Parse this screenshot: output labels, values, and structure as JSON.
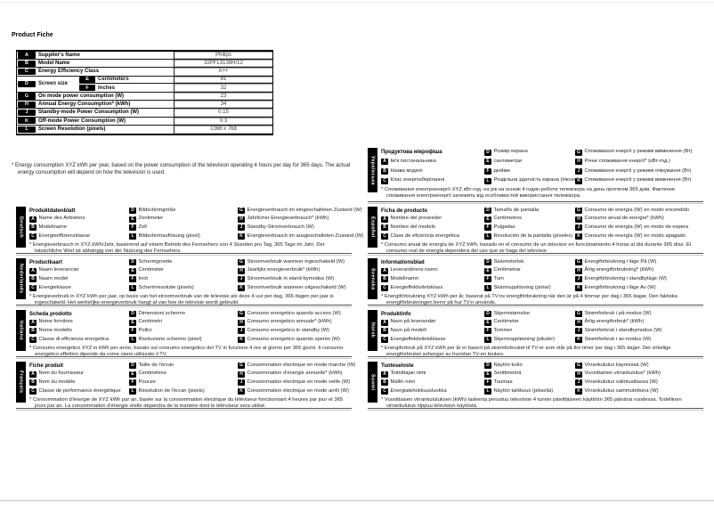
{
  "page": {
    "title": "Product Fiche"
  },
  "colors": {
    "badge_bg": "#000000",
    "badge_text": "#ffffff",
    "rule_dark": "#555555",
    "rule_light": "#c9c9c9"
  },
  "table": {
    "rows": [
      {
        "badge": "A",
        "label": "Supplier's Name",
        "value": "Philips"
      },
      {
        "badge": "B",
        "label": "Model Name",
        "value": "32PFL3138H/12"
      },
      {
        "badge": "C",
        "label": "Energy Efficiency Class",
        "value": "A++"
      },
      {
        "badge": "D",
        "label": "Screen size",
        "sub": [
          {
            "badge": "E",
            "label": "Centimeters",
            "value": "81"
          },
          {
            "badge": "F",
            "label": "Inches",
            "value": "32"
          }
        ]
      },
      {
        "badge": "G",
        "label": "On mode power consumption (W)",
        "value": "23"
      },
      {
        "badge": "H",
        "label": "Annual Energy Consumption* (kWh)",
        "value": "34"
      },
      {
        "badge": "J",
        "label": "Standby-mode Power Consumption (W)",
        "value": "0.15"
      },
      {
        "badge": "K",
        "label": "Off-mode Power Consumption (W)",
        "value": "0.3"
      },
      {
        "badge": "L",
        "label": "Screen Resolution (pixels)",
        "value": "1366 x 768"
      }
    ]
  },
  "footnote_en": "* Energy consumption XYZ kWh per year, based on the power consumption of the television operating 4 hours per day for 365 days. The actual energy consumption will depend on how the television is used.",
  "sections": [
    {
      "language": "Deutsch",
      "column": "left",
      "title": "Produktdatenblatt",
      "items": {
        "A": "Name des Anbieters",
        "B": "Modellname",
        "C": "Energieeffizienzklasse",
        "D": "Bildschirmgröße",
        "E": "Zentimeter",
        "F": "Zoll",
        "L": "Bildschirmauflösung (pixel)",
        "G": "Energieverbrauch im eingeschalteten Zustand (W)",
        "H": "Jährlicher Energieverbrauch* (kWh)",
        "J": "Standby-Stromverbrauch (W)",
        "K": "Energieverbrauch im ausgeschalteten Zustand (W)"
      },
      "note": "* Energieverbrauch in XYZ kWh/Jahr, basierend auf einem Betrieb des Fernsehers von 4 Stunden pro Tag, 365 Tage im Jahr. Der tatsächliche Wert ist abhängig von der Nutzung des Fernsehers."
    },
    {
      "language": "Nederlands",
      "column": "left",
      "title": "Productkaart",
      "items": {
        "A": "Naam leverancier",
        "B": "Naam model",
        "C": "Energieklasse",
        "D": "Schermgrootte",
        "E": "Centimeter",
        "F": "Inch",
        "L": "Schermresolutie (pixels)",
        "G": "Stroomverbruik wanneer ingeschakeld (W)",
        "H": "Jaarlijks energieverbruik* (kWh)",
        "J": "Stroomverbruik in stand-bymodus (W)",
        "K": "Stroomverbruik wanneer uitgeschakeld (W)"
      },
      "note": "* Energieverbruik in XYZ kWh per jaar, op basis van het stroomverbruik van de televisie als deze 4 uur per dag, 365 dagen per jaar is ingeschakeld. Het werkelijke energieverbruik hangt af van hoe de televisie wordt gebruikt."
    },
    {
      "language": "Italiano",
      "column": "left",
      "title": "Scheda prodotto",
      "items": {
        "A": "Nome fornitore",
        "B": "Nome modello",
        "C": "Classe di efficienza energetica",
        "D": "Dimensioni schermo",
        "E": "Centimetri",
        "F": "Pollici",
        "L": "Risoluzione schermo (pixel)",
        "G": "Consumo energetico quando acceso (W)",
        "H": "Consumo energetico annuale* (kWh)",
        "J": "Consumo energetico in standby (W)",
        "K": "Consumo energetico quando spento (W)"
      },
      "note": "* Consumo energetico XYZ in kWh per anno, basato sul consumo energetico del TV in funzione 4 ore al giorno per 365 giorni. Il consumo energetico effettivo dipende da come viene utilizzato il TV."
    },
    {
      "language": "Français",
      "column": "left",
      "title": "Fiche produit",
      "items": {
        "A": "Nom du fournisseur",
        "B": "Nom du modèle",
        "C": "Classe de performance énergétique",
        "D": "Taille de l'écran",
        "E": "Centimètres",
        "F": "Pouces",
        "L": "Résolution de l'écran (pixels)",
        "G": "Consommation électrique en mode marche (W)",
        "H": "Consommation d'énergie annuelle* (kWh)",
        "J": "Consommation électrique en mode veille (W)",
        "K": "Consommation électrique en mode arrêt (W)"
      },
      "note": "* Consommation d'énergie de XYZ kWh par an, basée sur la consommation électrique du téléviseur fonctionnant 4 heures par jour et 365 jours par an. La consommation d'énergie réelle dépendra de la manière dont le téléviseur sera utilisé."
    },
    {
      "language": "Українська",
      "column": "right",
      "tall": true,
      "title": "Продуктова мікрофіша",
      "items": {
        "A": "Ім'я постачальника",
        "B": "Назва моделі",
        "C": "Клас енергозберігання",
        "D": "Розмір екрана",
        "E": "сантиметри",
        "F": "дюйми",
        "L": "Роздільна здатність екрана (пікселі)",
        "G": "Споживання енергії у режимі ввімкнення (Вт)",
        "H": "Річне споживання енергії* (кВт-год.)",
        "J": "Споживання енергії у режимі очікування (Вт)",
        "K": "Споживання енергії у режимі вимкнення (Вт)"
      },
      "note": "* Споживання електроенергії XYZ кВт-год. на рік на основі 4 годин роботи телевізора на день протягом 365 днів. Фактичне споживання електроенергії залежить від особливостей використання телевізора."
    },
    {
      "language": "Español",
      "column": "right",
      "title": "Ficha de producto",
      "items": {
        "A": "Nombre del proveedor",
        "B": "Nombre del modelo",
        "C": "Clase de eficiencia energética",
        "D": "Tamaño de pantalla",
        "E": "Centímetros",
        "F": "Pulgadas",
        "L": "Resolución de la pantalla (píxeles)",
        "G": "Consumo de energía (W) en modo encendido",
        "H": "Consumo anual de energía* (kWh)",
        "J": "Consumo de energía (W) en modo de espera",
        "K": "Consumo de energía (W) en modo apagado"
      },
      "note": "* Consumo anual de energía de XYZ kWh, basado en el consumo de un televisor en funcionamiento 4 horas al día durante 365 días. El consumo real de energía dependerá del uso que se haga del televisor."
    },
    {
      "language": "Svenska",
      "column": "right",
      "title": "Informationsblad",
      "items": {
        "A": "Leverantörens namn",
        "B": "Modellnamn",
        "C": "Energieffektivitetsklass",
        "D": "Skärmstorlek",
        "E": "Centimetrar",
        "F": "Tum",
        "L": "Skärmupplösning (pixlar)",
        "G": "Energiförbrukning i läge På (W)",
        "H": "Årlig energiförbrukning* (kWh)",
        "J": "Energiförbrukning i standbyläge (W)",
        "K": "Energiförbrukning i läge Av (W)"
      },
      "note": "* Energiförbrukning XYZ kWh per år, baserat på TV:ns energiförbrukning när den är på 4 timmar per dag i 365 dagar. Den faktiska energiförbrukningen beror på hur TV:n används."
    },
    {
      "language": "Norsk",
      "column": "right",
      "title": "Produktinfo",
      "items": {
        "A": "Navn på leverandør",
        "B": "Navn på modell",
        "C": "Energieffektivitetsklasse",
        "D": "Skjermstørrelse",
        "E": "Centimeter",
        "F": "Tommer",
        "L": "Skjermoppløsning (piksler)",
        "G": "Strømforbruk i på-modus (W)",
        "H": "Årlig energiforbruk* (kWh)",
        "J": "Strømforbruk i standbymodus (W)",
        "K": "Strømforbruk i av-modus (W)"
      },
      "note": "* Energiforbruk på XYZ kWh per år er basert på strømforbruket til TV-er som står på fire timer per dag i 365 dager. Det virkelige energiforbruket avhenger av hvordan TV-en brukes."
    },
    {
      "language": "Suomi",
      "column": "right",
      "title": "Tuoteseloste",
      "items": {
        "A": "Toimittajan nimi",
        "B": "Mallin nimi",
        "C": "Energiatehokkuusluokka",
        "D": "Näytön koko",
        "E": "Senttimetriä",
        "F": "Tuumaa",
        "L": "Näytön tarkkuus (pikseliä)",
        "G": "Virrankulutus käynnissä (W)",
        "H": "Vuosittainen virrankulutus* (kWh)",
        "J": "Virrankulutus valmiustilassa (W)",
        "K": "Virrankulutus sammutettuna (W)"
      },
      "note": "* Vuosittaisen virrankulutuksen (kWh) laskenta perustuu television 4 tunnin päivittäiseen käyttöön 365 päivänä vuodessa. Todellinen virrankulutus riippuu television käytöstä."
    }
  ]
}
